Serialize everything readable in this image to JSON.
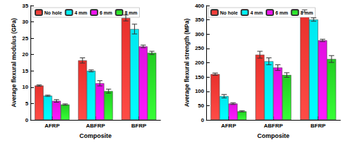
{
  "chart_data": [
    {
      "type": "bar",
      "x_label": "Composite",
      "y_label": "Average flexural modulus (GPa)",
      "categories": [
        "AFRP",
        "ABFRP",
        "BFRP"
      ],
      "series": [
        {
          "name": "No hole",
          "color": "#e8302c",
          "values": [
            10.5,
            18.2,
            31.2
          ],
          "errors": [
            0.2,
            0.8,
            0.9
          ]
        },
        {
          "name": "4 mm",
          "color": "#00e8f0",
          "values": [
            7.4,
            15.0,
            27.8
          ],
          "errors": [
            0.2,
            0.3,
            1.5
          ]
        },
        {
          "name": "6 mm",
          "color": "#e010e0",
          "values": [
            5.8,
            11.2,
            22.5
          ],
          "errors": [
            0.4,
            0.8,
            0.4
          ]
        },
        {
          "name": "8 mm",
          "color": "#22cc22",
          "values": [
            4.7,
            8.8,
            20.5
          ],
          "errors": [
            0.2,
            0.6,
            0.5
          ]
        }
      ],
      "ylim": [
        0,
        35
      ],
      "yticks": [
        0,
        5,
        10,
        15,
        20,
        25,
        30,
        35
      ],
      "grid": false,
      "legend": "upper left"
    },
    {
      "type": "bar",
      "x_label": "Composite",
      "y_label": "Average flexural strength (MPa)",
      "categories": [
        "AFRP",
        "ABFRP",
        "BFRP"
      ],
      "series": [
        {
          "name": "No hole",
          "color": "#e8302c",
          "values": [
            160,
            228,
            381
          ],
          "errors": [
            4,
            12,
            4
          ]
        },
        {
          "name": "4 mm",
          "color": "#00e8f0",
          "values": [
            83,
            205,
            351
          ],
          "errors": [
            6,
            12,
            6
          ]
        },
        {
          "name": "6 mm",
          "color": "#e010e0",
          "values": [
            57,
            183,
            278
          ],
          "errors": [
            3,
            10,
            4
          ]
        },
        {
          "name": "8 mm",
          "color": "#22cc22",
          "values": [
            30,
            157,
            213
          ],
          "errors": [
            2,
            8,
            12
          ]
        }
      ],
      "ylim": [
        0,
        400
      ],
      "yticks": [
        0,
        50,
        100,
        150,
        200,
        250,
        300,
        350,
        400
      ],
      "grid": false,
      "legend": "upper left"
    }
  ]
}
